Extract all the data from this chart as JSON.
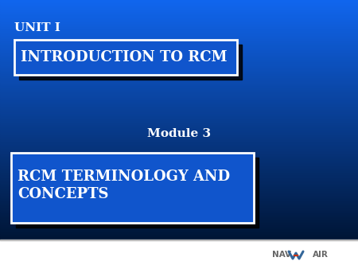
{
  "bg_color_top": "#1166EE",
  "bg_color_bottom": "#001535",
  "unit_text": "UNIT I",
  "intro_text": "INTRODUCTION TO RCM",
  "module_text": "Module 3",
  "rcm_text": "RCM TERMINOLOGY AND\nCONCEPTS",
  "text_color": "#FFFFFF",
  "box_fill_color": "#1055CC",
  "shadow_color": "#000000",
  "footer_bg": "#FFFFFF",
  "footer_line_color": "#CCCCCC",
  "navair_text_color": "#666666",
  "navair_logo_color1": "#336699",
  "navair_logo_color2": "#CC3300",
  "fig_w": 4.5,
  "fig_h": 3.38,
  "dpi": 100
}
